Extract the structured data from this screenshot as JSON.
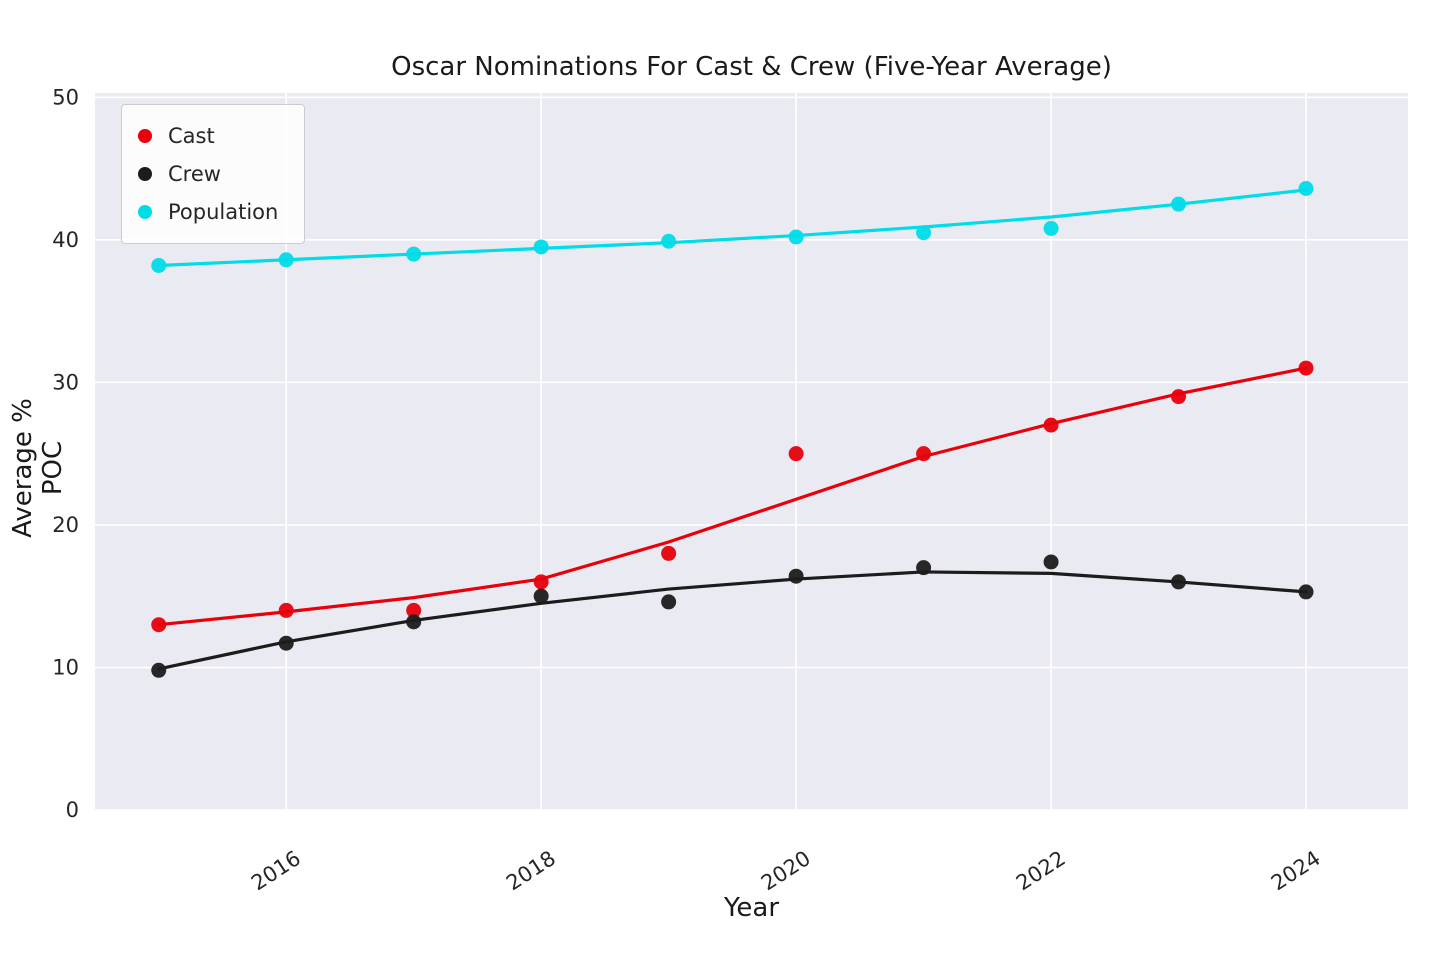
{
  "chart_data": {
    "type": "scatter",
    "title": "Oscar Nominations For Cast & Crew (Five-Year Average)",
    "xlabel": "Year",
    "ylabel": "Average % POC",
    "xlim": [
      2014.5,
      2024.8
    ],
    "ylim": [
      0,
      50.3
    ],
    "xticks": [
      2016,
      2018,
      2020,
      2022,
      2024
    ],
    "yticks": [
      0,
      10,
      20,
      30,
      40,
      50
    ],
    "grid": true,
    "plot_bg": "#eaeaf2",
    "grid_color": "#ffffff",
    "tick_color": "#262626",
    "legend_position": "upper left",
    "x": [
      2015,
      2016,
      2017,
      2018,
      2019,
      2020,
      2021,
      2022,
      2023,
      2024
    ],
    "series": [
      {
        "name": "Cast",
        "color": "#e8000b",
        "points": [
          13.0,
          14.0,
          14.0,
          16.0,
          18.0,
          25.0,
          25.0,
          27.0,
          29.0,
          31.0
        ],
        "trend": [
          13.0,
          13.9,
          14.9,
          16.2,
          18.8,
          21.8,
          24.8,
          27.1,
          29.2,
          31.0
        ]
      },
      {
        "name": "Crew",
        "color": "#1c1c1c",
        "points": [
          9.8,
          11.7,
          13.2,
          15.0,
          14.6,
          16.4,
          17.0,
          17.4,
          16.0,
          15.3
        ],
        "trend": [
          9.9,
          11.8,
          13.3,
          14.5,
          15.5,
          16.2,
          16.7,
          16.6,
          16.0,
          15.3
        ]
      },
      {
        "name": "Population",
        "color": "#00dce8",
        "points": [
          38.2,
          38.6,
          39.0,
          39.5,
          39.9,
          40.2,
          40.5,
          40.8,
          42.5,
          43.6
        ],
        "trend": [
          38.2,
          38.6,
          39.0,
          39.4,
          39.8,
          40.3,
          40.9,
          41.6,
          42.5,
          43.5
        ]
      }
    ]
  }
}
